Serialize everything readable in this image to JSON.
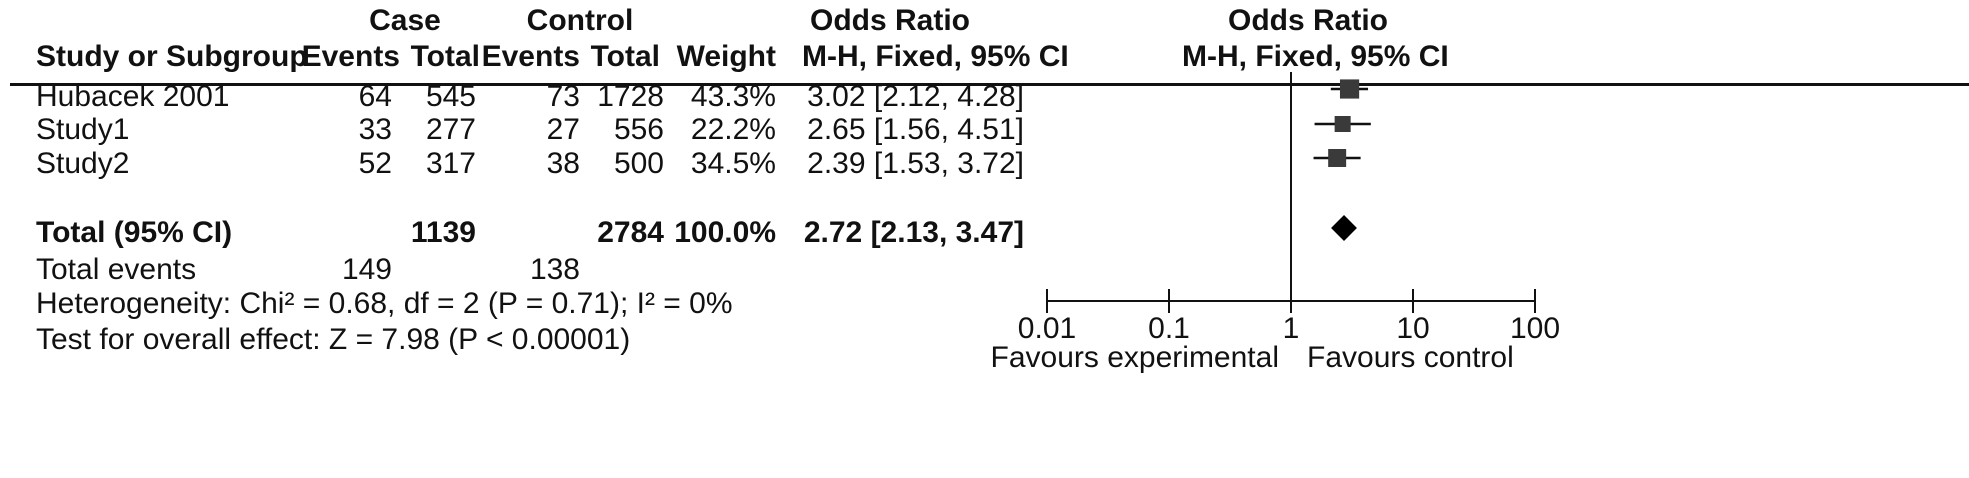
{
  "header": {
    "group1": "Case",
    "group2": "Control",
    "or_title": "Odds Ratio",
    "or_plot_title": "Odds Ratio",
    "col_study": "Study or Subgroup",
    "col_events1": "Events",
    "col_total1": "Total",
    "col_events2": "Events",
    "col_total2": "Total",
    "col_weight": "Weight",
    "col_method": "M-H, Fixed, 95% CI",
    "col_method_plot": "M-H, Fixed, 95% CI"
  },
  "studies": [
    {
      "name": "Hubacek  2001",
      "events1": "64",
      "total1": "545",
      "events2": "73",
      "total2": "1728",
      "weight": "43.3%",
      "ci_text": "3.02 [2.12, 4.28]"
    },
    {
      "name": "Study1",
      "events1": "33",
      "total1": "277",
      "events2": "27",
      "total2": "556",
      "weight": "22.2%",
      "ci_text": "2.65 [1.56, 4.51]"
    },
    {
      "name": "Study2",
      "events1": "52",
      "total1": "317",
      "events2": "38",
      "total2": "500",
      "weight": "34.5%",
      "ci_text": "2.39 [1.53, 3.72]"
    }
  ],
  "total": {
    "label": "Total (95% CI)",
    "total1": "1139",
    "total2": "2784",
    "weight": "100.0%",
    "ci_text": "2.72 [2.13, 3.47]"
  },
  "events": {
    "label": "Total events",
    "events1": "149",
    "events2": "138"
  },
  "heterogeneity": "Heterogeneity: Chi² = 0.68, df = 2 (P = 0.71); I² = 0%",
  "overall_effect": "Test for overall effect: Z = 7.98 (P < 0.00001)",
  "chart_data": {
    "type": "scatter",
    "scale": "log",
    "xlim": [
      0.01,
      100
    ],
    "ticks": [
      0.01,
      0.1,
      1,
      10,
      100
    ],
    "tick_labels": [
      "0.01",
      "0.1",
      "1",
      "10",
      "100"
    ],
    "reference_line": 1,
    "left_label": "Favours experimental",
    "right_label": "Favours control",
    "studies": [
      {
        "name": "Hubacek  2001",
        "or": 3.02,
        "lo": 2.12,
        "hi": 4.28,
        "weight": 43.3
      },
      {
        "name": "Study1",
        "or": 2.65,
        "lo": 1.56,
        "hi": 4.51,
        "weight": 22.2
      },
      {
        "name": "Study2",
        "or": 2.39,
        "lo": 1.53,
        "hi": 3.72,
        "weight": 34.5
      }
    ],
    "pooled": {
      "or": 2.72,
      "lo": 2.13,
      "hi": 3.47
    },
    "colors": {
      "marker": "#3a3a3a",
      "line": "#111111"
    }
  }
}
